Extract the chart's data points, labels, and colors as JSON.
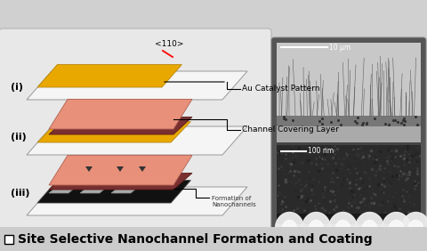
{
  "title": "Site Selective Nanochannel Formation and Coating",
  "bg_color": "#d0d0d0",
  "left_panel_color": "#e8e8e8",
  "white": "#ffffff",
  "gold_color": "#E8A800",
  "pink_color": "#E8907A",
  "dark_red": "#7A3030",
  "black": "#111111",
  "gray_stripe": "#aaaaaa",
  "label_110": "<110>",
  "label_au": "Au Catalyst Pattern",
  "label_channel": "Channel Covering Layer",
  "label_nano": "Formation of\nNanochannels",
  "label_i": "(i)",
  "label_ii": "(ii)",
  "label_iii": "(iii)",
  "scale1": "10 μm",
  "scale2": "100 nm",
  "title_fontsize": 10,
  "label_fontsize": 8,
  "micro_top_bg": "#888888",
  "micro_bot_bg": "#222222",
  "wire_color": "#cccccc",
  "bump_color": "#eeeeee"
}
